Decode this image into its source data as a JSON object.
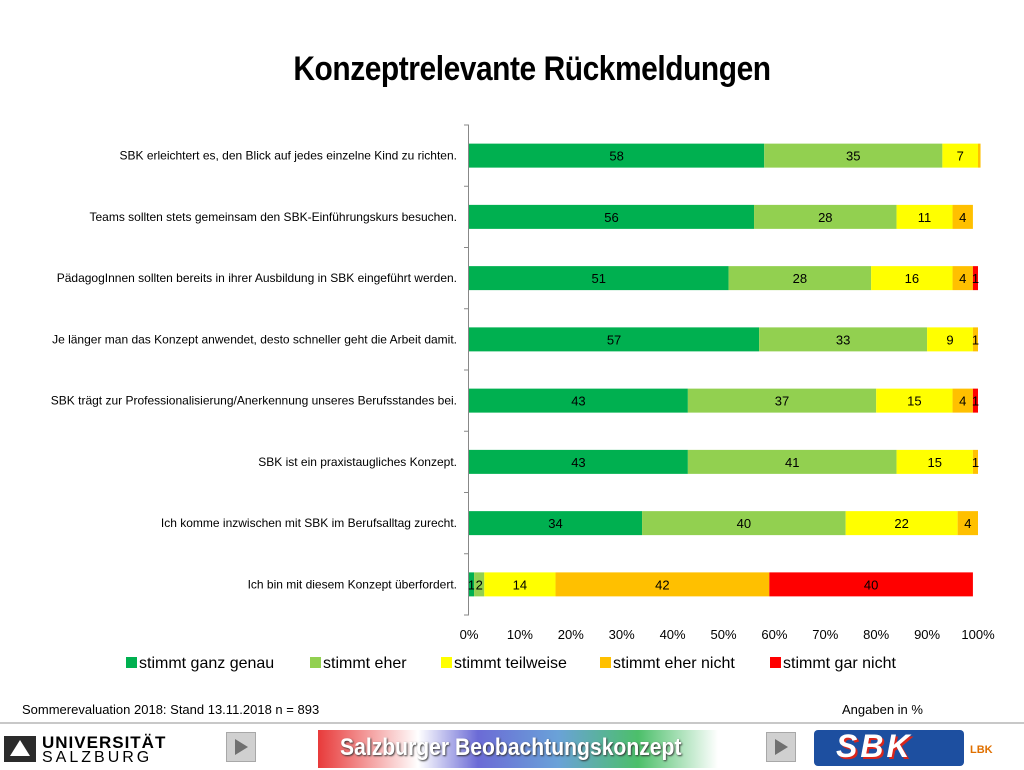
{
  "title": "Konzeptrelevante Rückmeldungen",
  "footer": {
    "left": "Sommerevaluation 2018: Stand  13.11.2018  n = 893",
    "right": "Angaben in %"
  },
  "bottom_bar": {
    "university_line1": "UNIVERSITÄT",
    "university_line2": "SALZBURG",
    "banner_text": "Salzburger Beobachtungskonzept",
    "logo_text": "SBK",
    "small_logo_text": "LBK",
    "icons": [
      "play-icon",
      "play-icon"
    ]
  },
  "chart_data": {
    "type": "bar",
    "orientation": "horizontal",
    "stacked": "100%",
    "categories": [
      "SBK erleichtert es, den Blick auf jedes einzelne Kind zu richten.",
      "Teams sollten stets gemeinsam den SBK-Einführungskurs besuchen.",
      "PädagogInnen sollten bereits in ihrer Ausbildung in SBK eingeführt werden.",
      "Je länger man das Konzept anwendet, desto schneller geht die Arbeit damit.",
      "SBK trägt zur Professionalisierung/Anerkennung unseres Berufsstandes bei.",
      "SBK ist ein praxistaugliches Konzept.",
      "Ich komme inzwischen mit SBK im Berufsalltag zurecht.",
      "Ich bin mit diesem Konzept überfordert."
    ],
    "series": [
      {
        "name": "stimmt ganz genau",
        "color": "#00b050",
        "values": [
          58,
          56,
          51,
          57,
          43,
          43,
          34,
          1
        ]
      },
      {
        "name": "stimmt eher",
        "color": "#92d050",
        "values": [
          35,
          28,
          28,
          33,
          37,
          41,
          40,
          2
        ]
      },
      {
        "name": "stimmt teilweise",
        "color": "#ffff00",
        "values": [
          7,
          11,
          16,
          9,
          15,
          15,
          22,
          14
        ]
      },
      {
        "name": "stimmt eher nicht",
        "color": "#ffc000",
        "values": [
          0.5,
          4,
          4,
          1,
          4,
          1,
          4,
          42
        ]
      },
      {
        "name": "stimmt gar nicht",
        "color": "#ff0000",
        "values": [
          0,
          0,
          1,
          0,
          1,
          0,
          0,
          40
        ]
      }
    ],
    "segment_labels": [
      [
        "58",
        "35",
        "7",
        "",
        ""
      ],
      [
        "56",
        "28",
        "11",
        "4",
        ""
      ],
      [
        "51",
        "28",
        "16",
        "4",
        "1"
      ],
      [
        "57",
        "33",
        "9",
        "1",
        ""
      ],
      [
        "43",
        "37",
        "15",
        "4",
        "1"
      ],
      [
        "43",
        "41",
        "15",
        "1",
        ""
      ],
      [
        "34",
        "40",
        "22",
        "4",
        ""
      ],
      [
        "1",
        "2",
        "14",
        "42",
        "40"
      ]
    ],
    "x_ticks": [
      "0%",
      "10%",
      "20%",
      "30%",
      "40%",
      "50%",
      "60%",
      "70%",
      "80%",
      "90%",
      "100%"
    ],
    "xlim": [
      0,
      100
    ],
    "legend_position": "bottom",
    "grid": false
  }
}
